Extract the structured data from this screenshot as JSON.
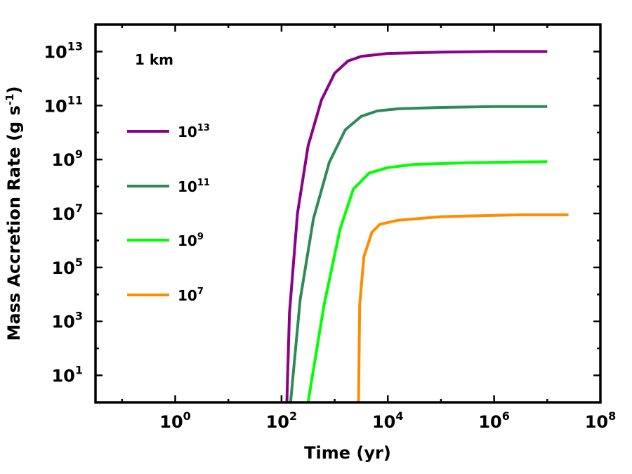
{
  "chart_data": {
    "type": "line",
    "x_scale": "log",
    "y_scale": "log",
    "xlim_exp": [
      -1.5,
      8
    ],
    "ylim_exp": [
      0,
      14
    ],
    "xlabel": "Time (yr)",
    "ylabel_main": "Mass Accretion Rate (g s",
    "ylabel_sup": "-1",
    "ylabel_close": ")",
    "annotation": "1 km",
    "x_ticks": [
      {
        "base": "10",
        "exp": "0",
        "value": 0
      },
      {
        "base": "10",
        "exp": "2",
        "value": 2
      },
      {
        "base": "10",
        "exp": "4",
        "value": 4
      },
      {
        "base": "10",
        "exp": "6",
        "value": 6
      },
      {
        "base": "10",
        "exp": "8",
        "value": 8
      }
    ],
    "y_ticks": [
      {
        "base": "10",
        "exp": "1",
        "value": 1
      },
      {
        "base": "10",
        "exp": "3",
        "value": 3
      },
      {
        "base": "10",
        "exp": "5",
        "value": 5
      },
      {
        "base": "10",
        "exp": "7",
        "value": 7
      },
      {
        "base": "10",
        "exp": "9",
        "value": 9
      },
      {
        "base": "10",
        "exp": "11",
        "value": 11
      },
      {
        "base": "10",
        "exp": "13",
        "value": 13
      }
    ],
    "legend_location": "left",
    "series": [
      {
        "name_base": "10",
        "name_exp": "13",
        "color": "#8B008B",
        "points": [
          [
            2.1,
            0
          ],
          [
            2.15,
            3.3
          ],
          [
            2.3,
            7
          ],
          [
            2.5,
            9.5
          ],
          [
            2.75,
            11.2
          ],
          [
            3,
            12.2
          ],
          [
            3.25,
            12.65
          ],
          [
            3.5,
            12.82
          ],
          [
            4,
            12.93
          ],
          [
            5,
            12.98
          ],
          [
            6,
            13.0
          ],
          [
            7,
            13.0
          ]
        ]
      },
      {
        "name_base": "10",
        "name_exp": "11",
        "color": "#2E8B57",
        "points": [
          [
            2.17,
            0
          ],
          [
            2.35,
            3.8
          ],
          [
            2.6,
            6.8
          ],
          [
            2.9,
            8.9
          ],
          [
            3.2,
            10.1
          ],
          [
            3.5,
            10.6
          ],
          [
            3.8,
            10.8
          ],
          [
            4.2,
            10.88
          ],
          [
            5,
            10.93
          ],
          [
            6,
            10.96
          ],
          [
            7,
            10.96
          ]
        ]
      },
      {
        "name_base": "10",
        "name_exp": "9",
        "color": "#00FF00",
        "points": [
          [
            2.5,
            0
          ],
          [
            2.8,
            3.6
          ],
          [
            3.1,
            6.4
          ],
          [
            3.35,
            7.9
          ],
          [
            3.65,
            8.5
          ],
          [
            4,
            8.7
          ],
          [
            4.5,
            8.82
          ],
          [
            5.5,
            8.88
          ],
          [
            7,
            8.92
          ]
        ]
      },
      {
        "name_base": "10",
        "name_exp": "7",
        "color": "#FF8C00",
        "points": [
          [
            3.45,
            0
          ],
          [
            3.47,
            3.6
          ],
          [
            3.55,
            5.4
          ],
          [
            3.7,
            6.3
          ],
          [
            3.85,
            6.6
          ],
          [
            4.2,
            6.75
          ],
          [
            5,
            6.88
          ],
          [
            6,
            6.93
          ],
          [
            6.5,
            6.95
          ],
          [
            7.4,
            6.95
          ]
        ]
      }
    ]
  }
}
